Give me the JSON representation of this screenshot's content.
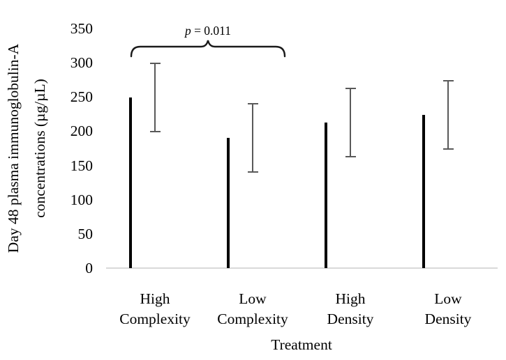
{
  "chart_data": {
    "type": "bar",
    "title": "",
    "xlabel": "Treatment",
    "ylabel_lines": [
      "Day 48 plasma immunoglobulin-A",
      "concentrations (µg/µL)"
    ],
    "categories": [
      [
        "High",
        "Complexity"
      ],
      [
        "Low",
        "Complexity"
      ],
      [
        "High",
        "Density"
      ],
      [
        "Low",
        "Density"
      ]
    ],
    "values": [
      249,
      190,
      213,
      224
    ],
    "errors": [
      50,
      50,
      50,
      50
    ],
    "y_axis": {
      "min": 0,
      "max": 350,
      "step": 50
    },
    "annotation": {
      "symbol": "p",
      "rest": " = 0.011",
      "text": "p = 0.011",
      "from_index": 0,
      "to_index": 1
    },
    "bar_fills": [
      "#000000",
      "#FFFFFF",
      "#ACA9A8",
      "#3F3E3E"
    ],
    "bar_border": "#000000",
    "colors": {
      "error_bar": "#595959",
      "axis_line": "#D9D9D9",
      "bracket": "#1A1A1A",
      "text": "#000000"
    },
    "legend": "none",
    "grid": "off"
  }
}
